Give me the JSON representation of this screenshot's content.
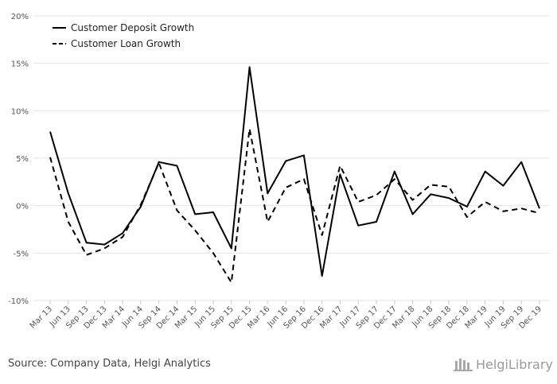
{
  "chart_data": {
    "type": "line",
    "title": "",
    "xlabel": "",
    "ylabel": "",
    "ylim": [
      -10,
      20
    ],
    "ytick_values": [
      -10,
      -5,
      0,
      5,
      10,
      15,
      20
    ],
    "ytick_labels": [
      "-10%",
      "-5%",
      "0%",
      "5%",
      "10%",
      "15%",
      "20%"
    ],
    "grid": true,
    "legend_position": "top-left",
    "categories": [
      "Mar 13",
      "Jun 13",
      "Sep 13",
      "Dec 13",
      "Mar 14",
      "Jun 14",
      "Sep 14",
      "Dec 14",
      "Mar 15",
      "Jun 15",
      "Sep 15",
      "Dec 15",
      "Mar 16",
      "Jun 16",
      "Sep 16",
      "Dec 16",
      "Mar 17",
      "Jun 17",
      "Sep 17",
      "Dec 17",
      "Mar 18",
      "Jun 18",
      "Sep 18",
      "Dec 18",
      "Mar 19",
      "Jun 19",
      "Sep 19",
      "Dec 19"
    ],
    "series": [
      {
        "name": "Customer Deposit Growth",
        "style": "solid",
        "color": "#000000",
        "values": [
          7.8,
          1.3,
          -3.9,
          -4.1,
          -2.9,
          -0.1,
          4.6,
          4.2,
          -0.9,
          -0.7,
          -4.5,
          14.6,
          1.3,
          4.7,
          5.3,
          -7.4,
          3.3,
          -2.1,
          -1.7,
          3.6,
          -0.9,
          1.2,
          0.8,
          -0.1,
          3.6,
          2.1,
          4.6,
          -0.3
        ]
      },
      {
        "name": "Customer Loan Growth",
        "style": "dashed",
        "color": "#000000",
        "values": [
          5.1,
          -1.7,
          -5.2,
          -4.5,
          -3.3,
          0.1,
          4.5,
          -0.5,
          -2.6,
          -5.0,
          -8.1,
          8.1,
          -1.7,
          1.9,
          2.8,
          -3.1,
          4.2,
          0.4,
          1.1,
          2.8,
          0.6,
          2.2,
          2.0,
          -1.2,
          0.4,
          -0.6,
          -0.3,
          -0.8
        ]
      }
    ]
  },
  "footer": {
    "source": "Source: Company Data, Helgi Analytics",
    "brand": "HelgiLibrary"
  }
}
